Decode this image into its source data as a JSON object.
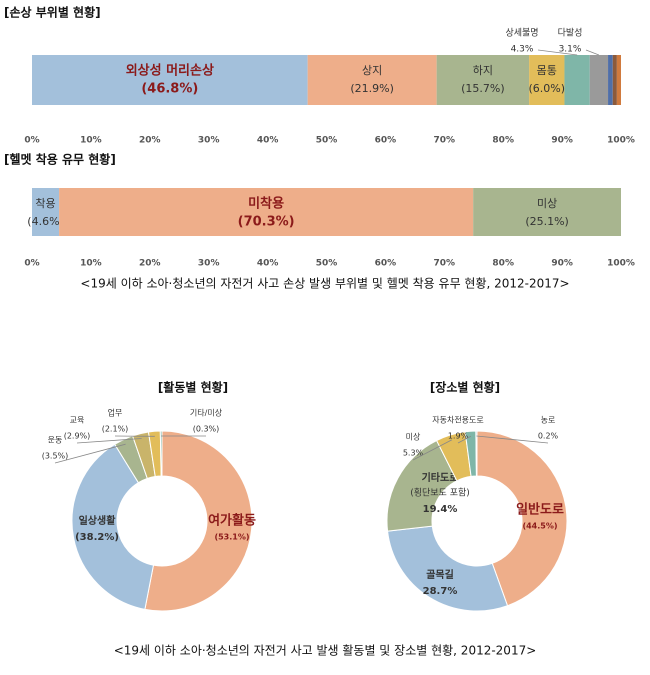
{
  "chart_data": [
    {
      "type": "stacked_bar",
      "title": "[손상 부위별 현황]",
      "xlim": [
        0,
        100
      ],
      "xticks": [
        {
          "value": 0,
          "label": "0%"
        },
        {
          "value": 10,
          "label": "10%"
        },
        {
          "value": 20,
          "label": "20%"
        },
        {
          "value": 30,
          "label": "30%"
        },
        {
          "value": 40,
          "label": "40%"
        },
        {
          "value": 50,
          "label": "50%"
        },
        {
          "value": 60,
          "label": "60%"
        },
        {
          "value": 70,
          "label": "70%"
        },
        {
          "value": 80,
          "label": "80%"
        },
        {
          "value": 90,
          "label": "90%"
        },
        {
          "value": 100,
          "label": "100%"
        }
      ],
      "series": [
        {
          "name": "외상성 머리손상",
          "color": "#a3c0db",
          "values": [
            46.8
          ],
          "value_labels": [
            "(46.8%)"
          ],
          "emphasis": true
        },
        {
          "name": "상지",
          "color": "#eeae8a",
          "values": [
            21.9
          ],
          "value_labels": [
            "(21.9%)"
          ]
        },
        {
          "name": "하지",
          "color": "#a8b58f",
          "values": [
            15.7
          ],
          "value_labels": [
            "(15.7%)"
          ]
        },
        {
          "name": "몸통",
          "color": "#e2bd5a",
          "values": [
            6.0
          ],
          "value_labels": [
            "(6.0%)"
          ]
        },
        {
          "name": "상세불명",
          "color": "#7fb6a8",
          "values": [
            4.3
          ],
          "value_labels": [
            "4.3%"
          ]
        },
        {
          "name": "다발성",
          "color": "#9a9a9a",
          "values": [
            3.1
          ],
          "value_labels": [
            "3.1%"
          ]
        },
        {
          "name": null,
          "color": "#4f6fa8",
          "values": [
            0.8
          ]
        },
        {
          "name": null,
          "color": "#8b5a3c",
          "values": [
            0.7
          ]
        },
        {
          "name": null,
          "color": "#d07a3e",
          "values": [
            0.7
          ]
        }
      ]
    },
    {
      "type": "stacked_bar",
      "title": "[헬멧 착용 유무 현황]",
      "xlim": [
        0,
        100
      ],
      "xticks": [
        {
          "value": 0,
          "label": "0%"
        },
        {
          "value": 10,
          "label": "10%"
        },
        {
          "value": 20,
          "label": "20%"
        },
        {
          "value": 30,
          "label": "30%"
        },
        {
          "value": 40,
          "label": "40%"
        },
        {
          "value": 50,
          "label": "50%"
        },
        {
          "value": 60,
          "label": "60%"
        },
        {
          "value": 70,
          "label": "70%"
        },
        {
          "value": 80,
          "label": "80%"
        },
        {
          "value": 90,
          "label": "90%"
        },
        {
          "value": 100,
          "label": "100%"
        }
      ],
      "series": [
        {
          "name": "착용",
          "color": "#a3c0db",
          "values": [
            4.6
          ],
          "value_labels": [
            "(4.6%)"
          ]
        },
        {
          "name": "미착용",
          "color": "#eeae8a",
          "values": [
            70.3
          ],
          "value_labels": [
            "(70.3%)"
          ],
          "emphasis": true
        },
        {
          "name": "미상",
          "color": "#a8b58f",
          "values": [
            25.1
          ],
          "value_labels": [
            "(25.1%)"
          ]
        }
      ]
    },
    {
      "type": "donut",
      "title": "[활동별 현황]",
      "categories": [
        "여가활동",
        "일상생활",
        "운동",
        "교육",
        "업무",
        "기타/미상"
      ],
      "values": [
        53.1,
        38.2,
        3.5,
        2.9,
        2.1,
        0.3
      ],
      "value_labels": [
        "(53.1%)",
        "(38.2%)",
        "(3.5%)",
        "(2.9%)",
        "(2.1%)",
        "(0.3%)"
      ],
      "colors": [
        "#eeae8a",
        "#a3c0db",
        "#a8b58f",
        "#c9b46a",
        "#e2bd5a",
        "#7fb6a8"
      ],
      "emphasis": [
        true,
        false,
        false,
        false,
        false,
        false
      ]
    },
    {
      "type": "donut",
      "title": "[장소별 현황]",
      "categories": [
        "일반도로",
        "골목길",
        "기타도로",
        "미상",
        "자동차전용도로",
        "농로"
      ],
      "sublabels": [
        null,
        null,
        "(횡단보도 포함)",
        null,
        null,
        null
      ],
      "values": [
        44.5,
        28.7,
        19.4,
        5.3,
        1.9,
        0.2
      ],
      "value_labels": [
        "(44.5%)",
        "28.7%",
        "19.4%",
        "5.3%",
        "1.9%",
        "0.2%"
      ],
      "colors": [
        "#eeae8a",
        "#a3c0db",
        "#a8b58f",
        "#e2bd5a",
        "#7fb6a8",
        "#4f6fa8"
      ],
      "emphasis": [
        true,
        false,
        false,
        false,
        false,
        false
      ]
    }
  ],
  "captions": [
    "<19세 이하 소아·청소년의 자전거 사고 손상 발생 부위별 및 헬멧 착용 유무 현황, 2012-2017>",
    "<19세 이하 소아·청소년의 자전거 사고 발생 활동별 및 장소별 현황, 2012-2017>"
  ]
}
